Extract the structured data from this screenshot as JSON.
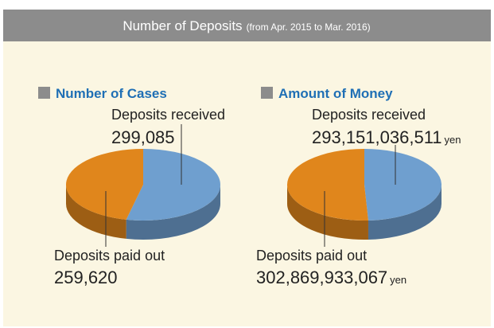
{
  "header": {
    "title": "Number of Deposits",
    "subtitle": "(from Apr. 2015 to Mar. 2016)"
  },
  "chart_data": [
    {
      "type": "pie",
      "title": "Number of Cases",
      "categories": [
        "Deposits received",
        "Deposits paid out"
      ],
      "values": [
        299085,
        259620
      ],
      "value_labels": [
        "299,085",
        "259,620"
      ],
      "colors": [
        "#6f9fcf",
        "#e0861c"
      ]
    },
    {
      "type": "pie",
      "title": "Amount of Money",
      "categories": [
        "Deposits received",
        "Deposits paid out"
      ],
      "values": [
        293151036511,
        302869933067
      ],
      "value_labels": [
        "293,151,036,511",
        "302,869,933,067"
      ],
      "unit": "yen",
      "colors": [
        "#6f9fcf",
        "#e0861c"
      ]
    }
  ]
}
